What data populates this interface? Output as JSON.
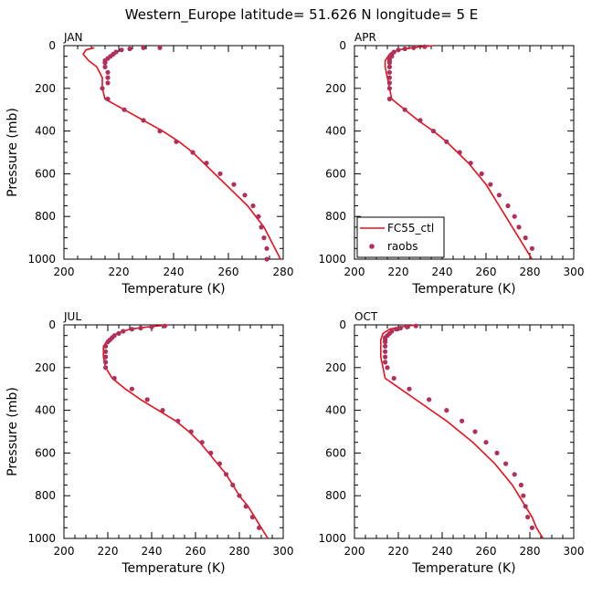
{
  "figure": {
    "title": "Western_Europe  latitude= 51.626 N longitude= 5 E"
  },
  "colors": {
    "model_line": "#e8101c",
    "obs_marker": "#b0305a",
    "axis": "#000000"
  },
  "chart_data": [
    {
      "type": "line",
      "panel_label": "JAN",
      "xlabel": "Temperature (K)",
      "ylabel": "Pressure (mb)",
      "xlim": [
        200,
        280
      ],
      "ylim": [
        1000,
        0
      ],
      "xticks": [
        200,
        220,
        240,
        260,
        280
      ],
      "yticks": [
        0,
        200,
        400,
        600,
        800,
        1000
      ],
      "grid": false,
      "legend": null,
      "series": [
        {
          "kind": "line",
          "points": [
            [
              211,
              10
            ],
            [
              208,
              20
            ],
            [
              207,
              40
            ],
            [
              209,
              70
            ],
            [
              212,
              100
            ],
            [
              214,
              150
            ],
            [
              214,
              200
            ],
            [
              215,
              250
            ],
            [
              222,
              300
            ],
            [
              229,
              350
            ],
            [
              236,
              400
            ],
            [
              242,
              450
            ],
            [
              247,
              500
            ],
            [
              251,
              550
            ],
            [
              255,
              600
            ],
            [
              259,
              650
            ],
            [
              263,
              700
            ],
            [
              267,
              750
            ],
            [
              270,
              800
            ],
            [
              273,
              850
            ],
            [
              275,
              900
            ],
            [
              277,
              950
            ],
            [
              279,
              1000
            ]
          ]
        },
        {
          "kind": "scatter",
          "points": [
            [
              235,
              10
            ],
            [
              229,
              10
            ],
            [
              224,
              15
            ],
            [
              221,
              20
            ],
            [
              219,
              30
            ],
            [
              218,
              40
            ],
            [
              217,
              50
            ],
            [
              216,
              60
            ],
            [
              215,
              70
            ],
            [
              215,
              80
            ],
            [
              215,
              100
            ],
            [
              216,
              125
            ],
            [
              216,
              150
            ],
            [
              216,
              175
            ],
            [
              214,
              200
            ],
            [
              216,
              250
            ],
            [
              222,
              300
            ],
            [
              229,
              350
            ],
            [
              235,
              400
            ],
            [
              241,
              450
            ],
            [
              247,
              500
            ],
            [
              252,
              550
            ],
            [
              257,
              600
            ],
            [
              262,
              650
            ],
            [
              266,
              700
            ],
            [
              269,
              750
            ],
            [
              271,
              800
            ],
            [
              272,
              850
            ],
            [
              273,
              900
            ],
            [
              274,
              950
            ],
            [
              274,
              1000
            ]
          ]
        }
      ]
    },
    {
      "type": "line",
      "panel_label": "APR",
      "xlabel": "Temperature (K)",
      "ylabel": "",
      "xlim": [
        200,
        300
      ],
      "ylim": [
        1000,
        0
      ],
      "xticks": [
        200,
        220,
        240,
        260,
        280,
        300
      ],
      "yticks": [
        0,
        200,
        400,
        600,
        800,
        1000
      ],
      "grid": false,
      "legend": {
        "position": "bottom-left",
        "entries": [
          {
            "label": "FC55_ctl",
            "kind": "line"
          },
          {
            "label": "raobs",
            "kind": "scatter"
          }
        ]
      },
      "series": [
        {
          "kind": "line",
          "points": [
            [
              236,
              0
            ],
            [
              226,
              10
            ],
            [
              220,
              20
            ],
            [
              216,
              40
            ],
            [
              214,
              70
            ],
            [
              214,
              100
            ],
            [
              215,
              150
            ],
            [
              216,
              200
            ],
            [
              217,
              250
            ],
            [
              223,
              300
            ],
            [
              229,
              350
            ],
            [
              236,
              400
            ],
            [
              242,
              450
            ],
            [
              247,
              500
            ],
            [
              252,
              550
            ],
            [
              256,
              600
            ],
            [
              260,
              650
            ],
            [
              263,
              700
            ],
            [
              266,
              750
            ],
            [
              269,
              800
            ],
            [
              272,
              850
            ],
            [
              275,
              900
            ],
            [
              278,
              950
            ],
            [
              281,
              1000
            ]
          ]
        },
        {
          "kind": "scatter",
          "points": [
            [
              232,
              5
            ],
            [
              227,
              10
            ],
            [
              223,
              15
            ],
            [
              220,
              20
            ],
            [
              218,
              30
            ],
            [
              217,
              40
            ],
            [
              217,
              50
            ],
            [
              216,
              60
            ],
            [
              216,
              70
            ],
            [
              216,
              80
            ],
            [
              216,
              100
            ],
            [
              216,
              125
            ],
            [
              216,
              150
            ],
            [
              216,
              175
            ],
            [
              216,
              200
            ],
            [
              216,
              250
            ],
            [
              223,
              300
            ],
            [
              230,
              350
            ],
            [
              236,
              400
            ],
            [
              242,
              450
            ],
            [
              248,
              500
            ],
            [
              253,
              550
            ],
            [
              258,
              600
            ],
            [
              262,
              650
            ],
            [
              266,
              700
            ],
            [
              270,
              750
            ],
            [
              273,
              800
            ],
            [
              275,
              850
            ],
            [
              278,
              900
            ],
            [
              281,
              950
            ]
          ]
        }
      ]
    },
    {
      "type": "line",
      "panel_label": "JUL",
      "xlabel": "Temperature (K)",
      "ylabel": "Pressure (mb)",
      "xlim": [
        200,
        300
      ],
      "ylim": [
        1000,
        0
      ],
      "xticks": [
        200,
        220,
        240,
        260,
        280,
        300
      ],
      "yticks": [
        0,
        200,
        400,
        600,
        800,
        1000
      ],
      "grid": false,
      "legend": null,
      "series": [
        {
          "kind": "line",
          "points": [
            [
              248,
              0
            ],
            [
              238,
              10
            ],
            [
              230,
              20
            ],
            [
              224,
              40
            ],
            [
              220,
              70
            ],
            [
              218,
              100
            ],
            [
              218,
              150
            ],
            [
              219,
              200
            ],
            [
              222,
              250
            ],
            [
              228,
              300
            ],
            [
              235,
              350
            ],
            [
              243,
              400
            ],
            [
              251,
              450
            ],
            [
              257,
              500
            ],
            [
              262,
              550
            ],
            [
              266,
              600
            ],
            [
              270,
              650
            ],
            [
              274,
              700
            ],
            [
              277,
              750
            ],
            [
              280,
              800
            ],
            [
              284,
              850
            ],
            [
              287,
              900
            ],
            [
              290,
              950
            ],
            [
              293,
              1000
            ]
          ]
        },
        {
          "kind": "scatter",
          "points": [
            [
              246,
              5
            ],
            [
              240,
              10
            ],
            [
              235,
              15
            ],
            [
              231,
              20
            ],
            [
              227,
              30
            ],
            [
              225,
              40
            ],
            [
              223,
              50
            ],
            [
              222,
              60
            ],
            [
              221,
              70
            ],
            [
              220,
              80
            ],
            [
              219,
              100
            ],
            [
              219,
              125
            ],
            [
              219,
              150
            ],
            [
              219,
              175
            ],
            [
              219,
              200
            ],
            [
              223,
              250
            ],
            [
              231,
              300
            ],
            [
              238,
              350
            ],
            [
              245,
              400
            ],
            [
              252,
              450
            ],
            [
              258,
              500
            ],
            [
              263,
              550
            ],
            [
              267,
              600
            ],
            [
              271,
              650
            ],
            [
              274,
              700
            ],
            [
              277,
              750
            ],
            [
              280,
              800
            ],
            [
              283,
              850
            ],
            [
              286,
              900
            ],
            [
              289,
              950
            ]
          ]
        }
      ]
    },
    {
      "type": "line",
      "panel_label": "OCT",
      "xlabel": "Temperature (K)",
      "ylabel": "",
      "xlim": [
        200,
        300
      ],
      "ylim": [
        1000,
        0
      ],
      "xticks": [
        200,
        220,
        240,
        260,
        280,
        300
      ],
      "yticks": [
        0,
        200,
        400,
        600,
        800,
        1000
      ],
      "grid": false,
      "legend": null,
      "series": [
        {
          "kind": "line",
          "points": [
            [
              228,
              0
            ],
            [
              221,
              10
            ],
            [
              216,
              20
            ],
            [
              213,
              40
            ],
            [
              212,
              70
            ],
            [
              212,
              100
            ],
            [
              212,
              150
            ],
            [
              213,
              200
            ],
            [
              214,
              250
            ],
            [
              221,
              300
            ],
            [
              228,
              350
            ],
            [
              235,
              400
            ],
            [
              242,
              450
            ],
            [
              248,
              500
            ],
            [
              254,
              550
            ],
            [
              259,
              600
            ],
            [
              264,
              650
            ],
            [
              268,
              700
            ],
            [
              272,
              750
            ],
            [
              275,
              800
            ],
            [
              278,
              850
            ],
            [
              281,
              900
            ],
            [
              283,
              950
            ],
            [
              286,
              1000
            ]
          ]
        },
        {
          "kind": "scatter",
          "points": [
            [
              228,
              5
            ],
            [
              224,
              10
            ],
            [
              221,
              15
            ],
            [
              219,
              20
            ],
            [
              217,
              30
            ],
            [
              216,
              40
            ],
            [
              215,
              50
            ],
            [
              214,
              60
            ],
            [
              214,
              70
            ],
            [
              214,
              80
            ],
            [
              214,
              100
            ],
            [
              214,
              125
            ],
            [
              214,
              150
            ],
            [
              214,
              175
            ],
            [
              215,
              200
            ],
            [
              218,
              250
            ],
            [
              225,
              300
            ],
            [
              234,
              350
            ],
            [
              242,
              400
            ],
            [
              249,
              450
            ],
            [
              255,
              500
            ],
            [
              260,
              550
            ],
            [
              265,
              600
            ],
            [
              269,
              650
            ],
            [
              273,
              700
            ],
            [
              276,
              750
            ],
            [
              277,
              800
            ],
            [
              278,
              850
            ],
            [
              279,
              900
            ],
            [
              281,
              950
            ]
          ]
        }
      ]
    }
  ]
}
